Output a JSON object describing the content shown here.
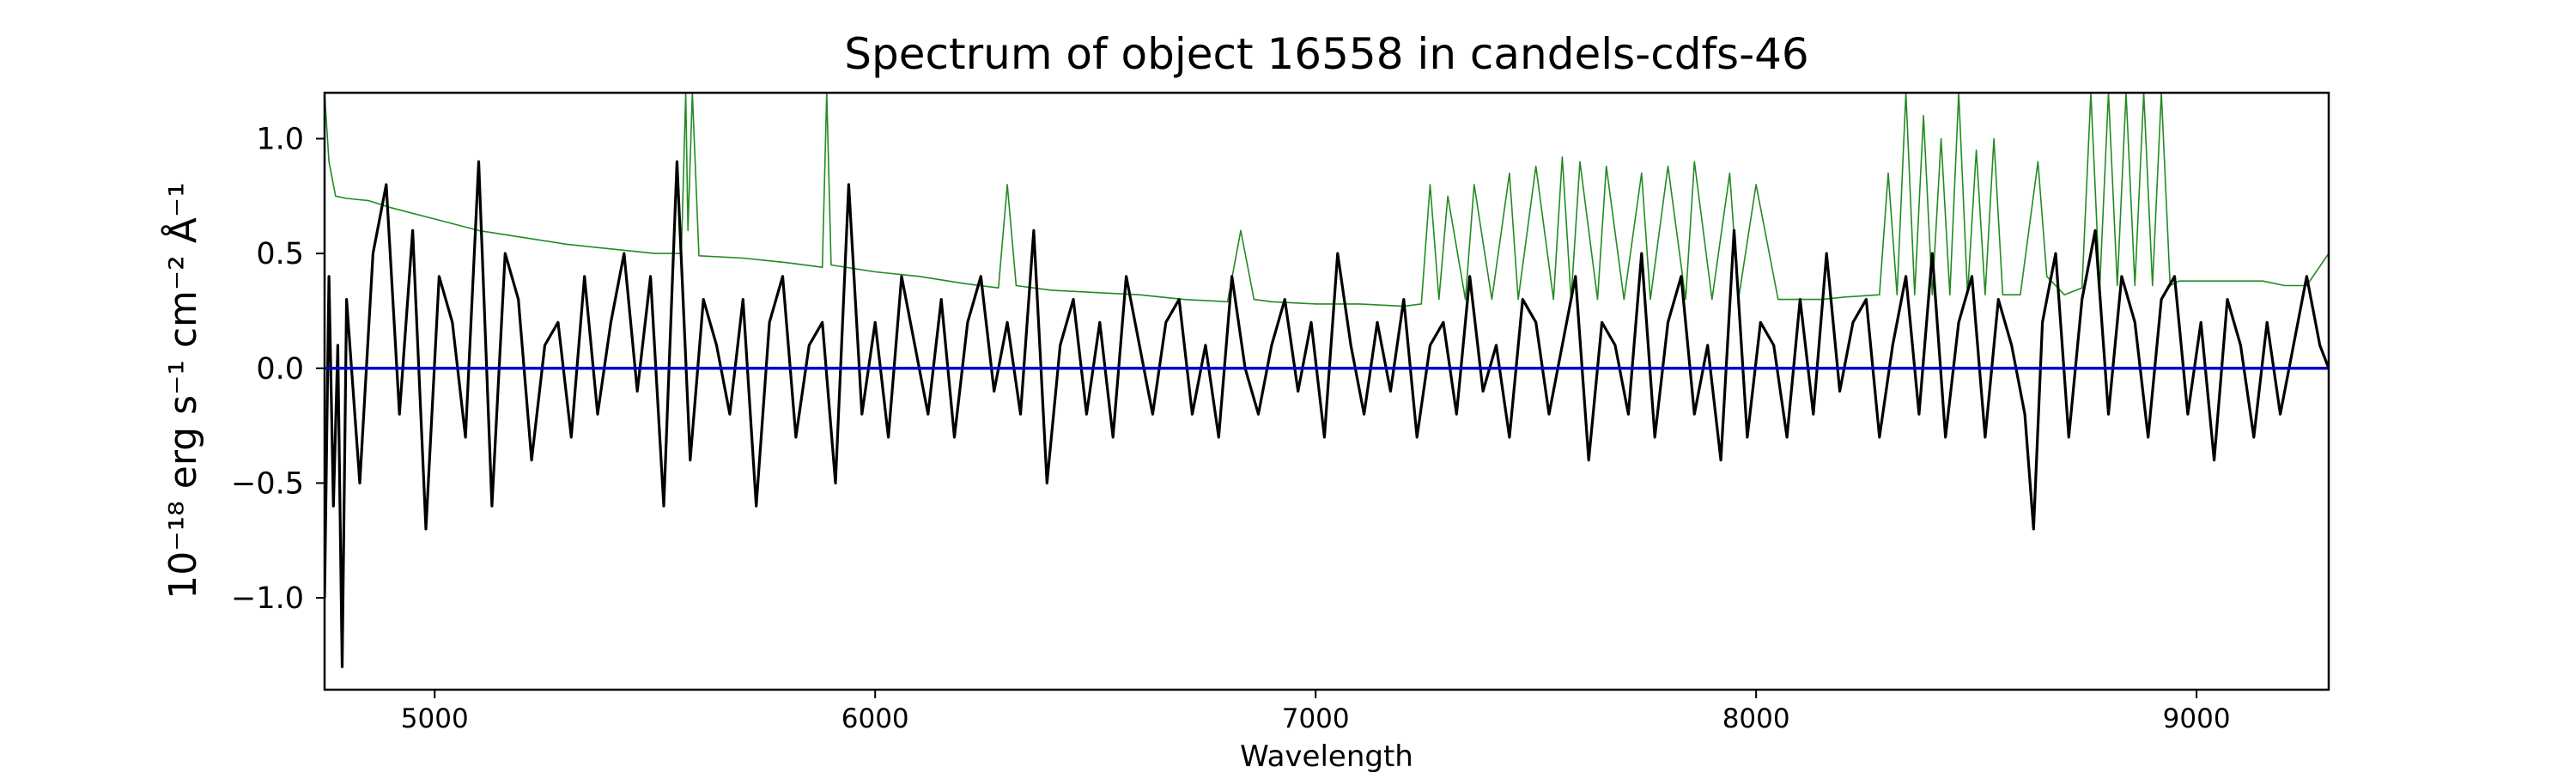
{
  "chart_data": {
    "type": "line",
    "title": "Spectrum of object 16558 in candels-cdfs-46",
    "xlabel": "Wavelength",
    "ylabel": "10⁻¹⁸ erg s⁻¹ cm⁻² Å⁻¹",
    "xlim": [
      4750,
      9300
    ],
    "ylim": [
      -1.4,
      1.2
    ],
    "x_ticks": [
      5000,
      6000,
      7000,
      8000,
      9000
    ],
    "x_tick_labels": [
      "5000",
      "6000",
      "7000",
      "8000",
      "9000"
    ],
    "y_ticks": [
      -1.0,
      -0.5,
      0.0,
      0.5,
      1.0
    ],
    "y_tick_labels": [
      "−1.0",
      "−0.5",
      "0.0",
      "0.5",
      "1.0"
    ],
    "grid": false,
    "colors": {
      "flux": "#000000",
      "noise": "#228b22",
      "zero": "#0000cc"
    },
    "series": [
      {
        "key": "flux",
        "x": [
          4750,
          4760,
          4770,
          4780,
          4790,
          4800,
          4830,
          4860,
          4890,
          4920,
          4950,
          4980,
          5010,
          5040,
          5070,
          5100,
          5130,
          5160,
          5190,
          5220,
          5250,
          5280,
          5310,
          5340,
          5370,
          5400,
          5430,
          5460,
          5490,
          5520,
          5550,
          5580,
          5610,
          5640,
          5670,
          5700,
          5730,
          5760,
          5790,
          5820,
          5850,
          5880,
          5910,
          5940,
          5970,
          6000,
          6030,
          6060,
          6090,
          6120,
          6150,
          6180,
          6210,
          6240,
          6270,
          6300,
          6330,
          6360,
          6390,
          6420,
          6450,
          6480,
          6510,
          6540,
          6570,
          6600,
          6630,
          6660,
          6690,
          6720,
          6750,
          6780,
          6810,
          6840,
          6870,
          6900,
          6930,
          6960,
          6990,
          7020,
          7050,
          7080,
          7110,
          7140,
          7170,
          7200,
          7230,
          7260,
          7290,
          7320,
          7350,
          7380,
          7410,
          7440,
          7470,
          7500,
          7530,
          7560,
          7590,
          7620,
          7650,
          7680,
          7710,
          7740,
          7770,
          7800,
          7830,
          7860,
          7890,
          7920,
          7950,
          7980,
          8010,
          8040,
          8070,
          8100,
          8130,
          8160,
          8190,
          8220,
          8250,
          8280,
          8310,
          8340,
          8370,
          8400,
          8430,
          8460,
          8490,
          8520,
          8550,
          8580,
          8610,
          8630,
          8650,
          8680,
          8710,
          8740,
          8770,
          8800,
          8830,
          8860,
          8890,
          8920,
          8950,
          8980,
          9010,
          9040,
          9070,
          9100,
          9130,
          9160,
          9190,
          9220,
          9250,
          9280,
          9300
        ],
        "y": [
          -1.0,
          0.4,
          -0.6,
          0.1,
          -1.3,
          0.3,
          -0.5,
          0.5,
          0.8,
          -0.2,
          0.6,
          -0.7,
          0.4,
          0.2,
          -0.3,
          0.9,
          -0.6,
          0.5,
          0.3,
          -0.4,
          0.1,
          0.2,
          -0.3,
          0.4,
          -0.2,
          0.2,
          0.5,
          -0.1,
          0.4,
          -0.6,
          0.9,
          -0.4,
          0.3,
          0.1,
          -0.2,
          0.3,
          -0.6,
          0.2,
          0.4,
          -0.3,
          0.1,
          0.2,
          -0.5,
          0.8,
          -0.2,
          0.2,
          -0.3,
          0.4,
          0.1,
          -0.2,
          0.3,
          -0.3,
          0.2,
          0.4,
          -0.1,
          0.2,
          -0.2,
          0.6,
          -0.5,
          0.1,
          0.3,
          -0.2,
          0.2,
          -0.3,
          0.4,
          0.1,
          -0.2,
          0.2,
          0.3,
          -0.2,
          0.1,
          -0.3,
          0.4,
          0.0,
          -0.2,
          0.1,
          0.3,
          -0.1,
          0.2,
          -0.3,
          0.5,
          0.1,
          -0.2,
          0.2,
          -0.1,
          0.3,
          -0.3,
          0.1,
          0.2,
          -0.2,
          0.4,
          -0.1,
          0.1,
          -0.3,
          0.3,
          0.2,
          -0.2,
          0.1,
          0.4,
          -0.4,
          0.2,
          0.1,
          -0.2,
          0.5,
          -0.3,
          0.2,
          0.4,
          -0.2,
          0.1,
          -0.4,
          0.6,
          -0.3,
          0.2,
          0.1,
          -0.3,
          0.3,
          -0.2,
          0.5,
          -0.1,
          0.2,
          0.3,
          -0.3,
          0.1,
          0.4,
          -0.2,
          0.5,
          -0.3,
          0.2,
          0.4,
          -0.3,
          0.3,
          0.1,
          -0.2,
          -0.7,
          0.2,
          0.5,
          -0.3,
          0.3,
          0.6,
          -0.2,
          0.4,
          0.2,
          -0.3,
          0.3,
          0.4,
          -0.2,
          0.2,
          -0.4,
          0.3,
          0.1,
          -0.3,
          0.2,
          -0.2,
          0.1,
          0.4,
          0.1,
          0.0
        ]
      },
      {
        "key": "noise",
        "x": [
          4750,
          4760,
          4775,
          4800,
          4850,
          4900,
          5000,
          5100,
          5200,
          5300,
          5400,
          5500,
          5560,
          5570,
          5575,
          5585,
          5600,
          5700,
          5800,
          5880,
          5890,
          5900,
          6000,
          6100,
          6200,
          6280,
          6300,
          6320,
          6400,
          6500,
          6600,
          6700,
          6800,
          6830,
          6860,
          6900,
          7000,
          7100,
          7200,
          7240,
          7260,
          7280,
          7300,
          7340,
          7360,
          7400,
          7440,
          7460,
          7500,
          7540,
          7560,
          7580,
          7600,
          7640,
          7660,
          7700,
          7740,
          7760,
          7800,
          7840,
          7860,
          7900,
          7940,
          7960,
          8000,
          8050,
          8100,
          8150,
          8200,
          8280,
          8300,
          8320,
          8340,
          8360,
          8380,
          8400,
          8420,
          8440,
          8460,
          8480,
          8500,
          8520,
          8540,
          8560,
          8600,
          8640,
          8660,
          8700,
          8740,
          8760,
          8780,
          8800,
          8820,
          8840,
          8860,
          8880,
          8900,
          8920,
          8940,
          8960,
          9000,
          9050,
          9100,
          9150,
          9200,
          9250,
          9300
        ],
        "y": [
          1.2,
          0.9,
          0.75,
          0.74,
          0.73,
          0.7,
          0.65,
          0.6,
          0.57,
          0.54,
          0.52,
          0.5,
          0.5,
          1.2,
          0.6,
          1.2,
          0.49,
          0.48,
          0.46,
          0.44,
          1.2,
          0.45,
          0.42,
          0.4,
          0.37,
          0.35,
          0.8,
          0.36,
          0.34,
          0.33,
          0.32,
          0.3,
          0.29,
          0.6,
          0.3,
          0.29,
          0.28,
          0.28,
          0.27,
          0.28,
          0.8,
          0.3,
          0.75,
          0.3,
          0.8,
          0.3,
          0.85,
          0.3,
          0.88,
          0.3,
          0.92,
          0.3,
          0.9,
          0.3,
          0.88,
          0.3,
          0.85,
          0.3,
          0.88,
          0.3,
          0.9,
          0.3,
          0.85,
          0.3,
          0.8,
          0.3,
          0.3,
          0.3,
          0.31,
          0.32,
          0.85,
          0.32,
          1.2,
          0.32,
          1.1,
          0.32,
          1.0,
          0.32,
          1.2,
          0.32,
          0.95,
          0.32,
          1.0,
          0.32,
          0.32,
          0.9,
          0.4,
          0.32,
          0.35,
          1.2,
          0.35,
          1.2,
          0.36,
          1.2,
          0.36,
          1.2,
          0.36,
          1.2,
          0.36,
          0.38,
          0.38,
          0.38,
          0.38,
          0.38,
          0.36,
          0.36,
          0.5
        ]
      },
      {
        "key": "zero",
        "x": [
          4750,
          9300
        ],
        "y": [
          0.0,
          0.0
        ]
      }
    ]
  }
}
